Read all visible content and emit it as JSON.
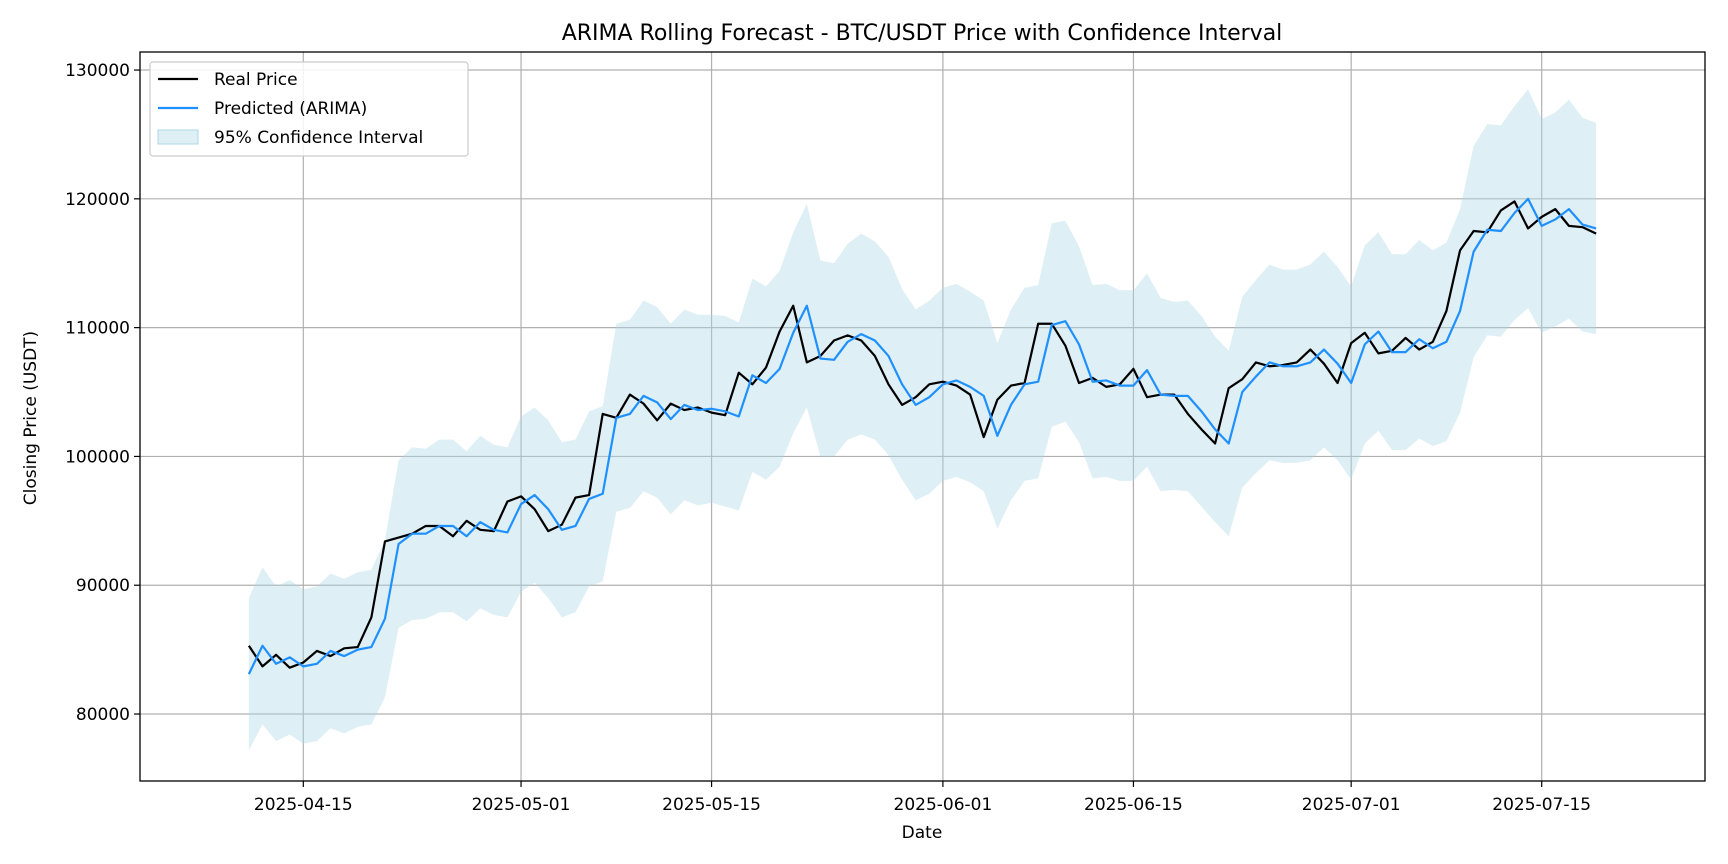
{
  "chart_data": {
    "type": "line",
    "title": "ARIMA Rolling Forecast - BTC/USDT Price with Confidence Interval",
    "xlabel": "Date",
    "ylabel": "Closing Price (USDT)",
    "x_start_date": "2025-04-11",
    "xlim": [
      "2025-04-03",
      "2025-07-27"
    ],
    "ylim": [
      74800,
      131400
    ],
    "grid": true,
    "legend_position": "top-left",
    "x_ticks": [
      "2025-04-15",
      "2025-05-01",
      "2025-05-15",
      "2025-06-01",
      "2025-06-15",
      "2025-07-01",
      "2025-07-15"
    ],
    "y_ticks": [
      80000,
      90000,
      100000,
      110000,
      120000,
      130000
    ],
    "colors": {
      "real": "#000000",
      "predicted": "#1e90ff",
      "confidence": "#add8e6"
    },
    "legend": {
      "real": "Real Price",
      "predicted": "Predicted (ARIMA)",
      "confidence": "95% Confidence Interval"
    },
    "series": [
      {
        "name": "Real Price",
        "values": [
          85300,
          83700,
          84600,
          83600,
          84000,
          84900,
          84500,
          85100,
          85200,
          87500,
          93400,
          93700,
          94000,
          94600,
          94600,
          93800,
          95000,
          94300,
          94200,
          96500,
          96900,
          95900,
          94200,
          94700,
          96800,
          97000,
          103300,
          103000,
          104800,
          104100,
          102800,
          104100,
          103600,
          103800,
          103400,
          103200,
          106500,
          105600,
          106900,
          109700,
          111700,
          107300,
          107800,
          109000,
          109400,
          109000,
          107800,
          105600,
          104000,
          104600,
          105600,
          105800,
          105500,
          104800,
          101500,
          104400,
          105500,
          105700,
          110300,
          110300,
          108600,
          105700,
          106100,
          105400,
          105600,
          106800,
          104600,
          104800,
          104800,
          103300,
          102100,
          101000,
          105300,
          106000,
          107300,
          107000,
          107100,
          107300,
          108300,
          107200,
          105700,
          108800,
          109600,
          108000,
          108200,
          109200,
          108300,
          108900,
          111300,
          116000,
          117500,
          117400,
          119100,
          119800,
          117700,
          118600,
          119200,
          117900,
          117800,
          117300
        ]
      },
      {
        "name": "Predicted (ARIMA)",
        "values": [
          83100,
          85300,
          83900,
          84400,
          83700,
          83900,
          84900,
          84500,
          85000,
          85200,
          87400,
          93200,
          94000,
          94000,
          94600,
          94600,
          93800,
          94900,
          94300,
          94100,
          96300,
          97000,
          95900,
          94300,
          94600,
          96700,
          97100,
          103000,
          103300,
          104700,
          104200,
          102900,
          104000,
          103600,
          103700,
          103500,
          103100,
          106300,
          105700,
          106800,
          109600,
          111700,
          107600,
          107500,
          108900,
          109500,
          109000,
          107800,
          105600,
          104000,
          104600,
          105600,
          105900,
          105400,
          104700,
          101600,
          104000,
          105600,
          105800,
          110200,
          110500,
          108700,
          105800,
          105900,
          105500,
          105500,
          106700,
          104800,
          104700,
          104700,
          103500,
          102100,
          101000,
          105000,
          106200,
          107300,
          107000,
          107000,
          107300,
          108300,
          107200,
          105700,
          108700,
          109700,
          108100,
          108100,
          109100,
          108400,
          108900,
          111300,
          115900,
          117600,
          117500,
          118900,
          120000,
          117900,
          118400,
          119200,
          118000,
          117700
        ]
      }
    ],
    "confidence_interval": {
      "name": "95% Confidence Interval",
      "lower": [
        77200,
        79200,
        77900,
        78400,
        77700,
        77900,
        78900,
        78500,
        79000,
        79200,
        81300,
        86700,
        87300,
        87400,
        87900,
        87900,
        87200,
        88200,
        87700,
        87500,
        89500,
        90200,
        89000,
        87500,
        87900,
        89900,
        90300,
        95700,
        96000,
        97300,
        96800,
        95500,
        96600,
        96200,
        96400,
        96100,
        95800,
        98800,
        98200,
        99200,
        101800,
        103800,
        100000,
        100000,
        101300,
        101700,
        101300,
        100100,
        98200,
        96600,
        97100,
        98100,
        98400,
        98000,
        97300,
        94400,
        96600,
        98100,
        98300,
        102300,
        102700,
        101100,
        98300,
        98400,
        98100,
        98100,
        99200,
        97300,
        97400,
        97300,
        96100,
        94900,
        93800,
        97600,
        98700,
        99700,
        99500,
        99500,
        99700,
        100700,
        99700,
        98200,
        101000,
        102000,
        100500,
        100500,
        101400,
        100800,
        101200,
        103400,
        107700,
        109400,
        109300,
        110600,
        111500,
        109600,
        110100,
        110700,
        109700,
        109500
      ]
    }
  }
}
